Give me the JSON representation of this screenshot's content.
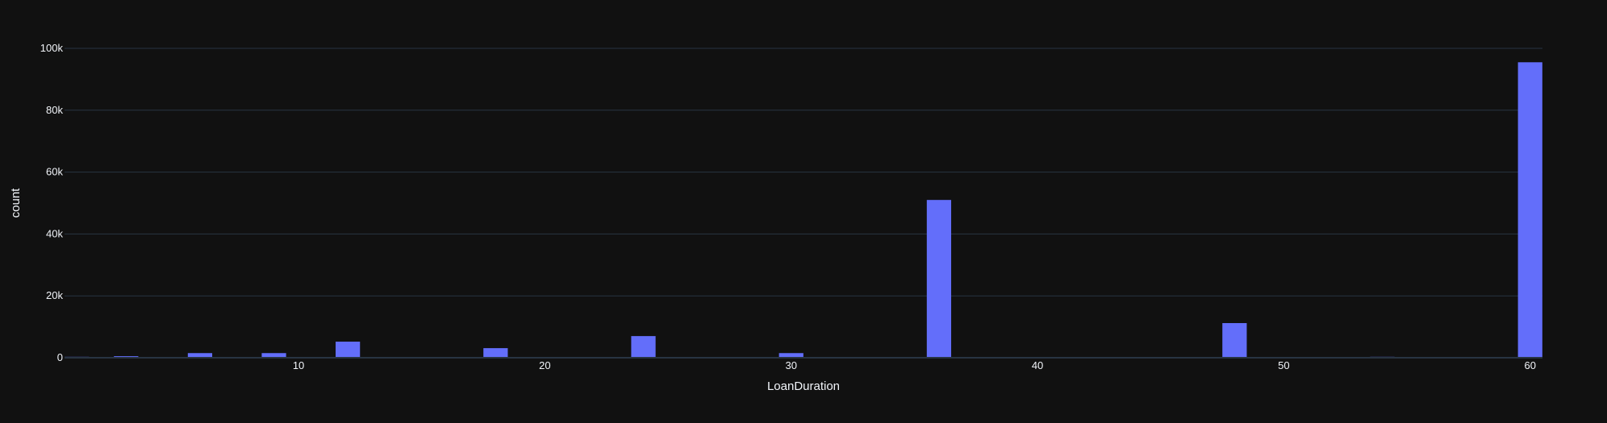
{
  "chart_data": {
    "type": "bar",
    "title": "",
    "xlabel": "LoanDuration",
    "ylabel": "count",
    "xlim": [
      0.5,
      60.5
    ],
    "ylim": [
      0,
      100000
    ],
    "x_ticks": [
      10,
      20,
      30,
      40,
      50,
      60
    ],
    "x_tick_labels": [
      "10",
      "20",
      "30",
      "40",
      "50",
      "60"
    ],
    "y_ticks": [
      0,
      20000,
      40000,
      60000,
      80000,
      100000
    ],
    "y_tick_labels": [
      "0",
      "20k",
      "40k",
      "60k",
      "80k",
      "100k"
    ],
    "grid": true,
    "colors": {
      "background": "#111111",
      "bar": "#636efa",
      "grid": "#283442",
      "text": "#f2f5fa"
    },
    "series": [
      {
        "x": [
          1,
          3,
          6,
          9,
          12,
          18,
          24,
          30,
          36,
          42,
          48,
          54,
          60
        ],
        "values": [
          300,
          500,
          1500,
          1500,
          5200,
          3100,
          7000,
          1500,
          51000,
          200,
          11200,
          300,
          95500
        ]
      }
    ]
  }
}
